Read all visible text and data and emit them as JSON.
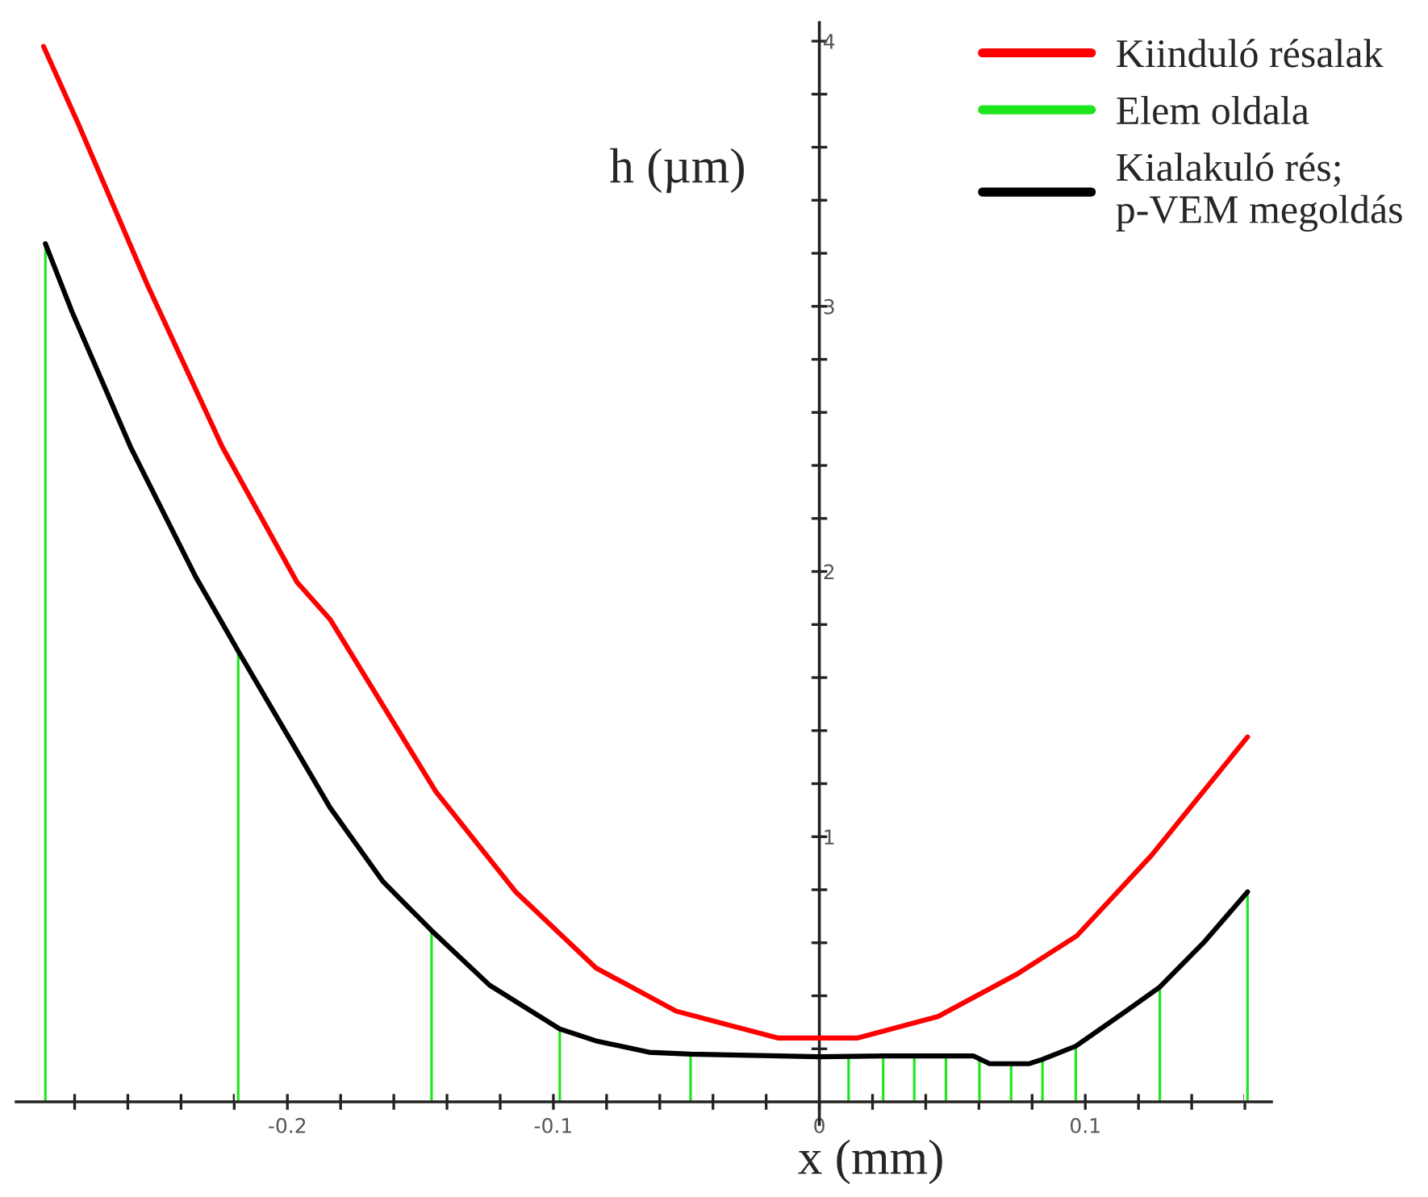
{
  "chart_data": {
    "type": "line",
    "xlabel": "x (mm)",
    "ylabel": "h (µm)",
    "series": [
      {
        "name": "Kiinduló résalak",
        "color": "#ff0000",
        "x": [
          -0.2917,
          -0.2787,
          -0.2526,
          -0.2245,
          -0.1964,
          -0.184,
          -0.1442,
          -0.114,
          -0.084,
          -0.0538,
          -0.0157,
          0.0145,
          0.0446,
          0.0747,
          0.0968,
          0.1249,
          0.161
        ],
        "values": [
          3.98,
          3.69,
          3.08,
          2.47,
          1.96,
          1.82,
          1.17,
          0.79,
          0.505,
          0.342,
          0.241,
          0.241,
          0.322,
          0.484,
          0.626,
          0.93,
          1.376
        ]
      },
      {
        "name": "Elem oldala",
        "color": "#1ee61e",
        "type": "bar",
        "x": [
          -0.291,
          -0.2185,
          -0.1458,
          -0.0976,
          -0.0484,
          0.0,
          0.011,
          0.024,
          0.0357,
          0.0476,
          0.0602,
          0.0721,
          0.0839,
          0.0964,
          0.128,
          0.161
        ],
        "values": [
          3.236,
          1.7,
          0.646,
          0.275,
          0.18,
          0.17,
          0.17,
          0.173,
          0.173,
          0.173,
          0.16,
          0.144,
          0.16,
          0.21,
          0.433,
          0.792
        ]
      },
      {
        "name": "Kialakuló rés;\np-VEM megoldás",
        "color": "#000000",
        "x": [
          -0.291,
          -0.281,
          -0.259,
          -0.2345,
          -0.2185,
          -0.184,
          -0.164,
          -0.1458,
          -0.124,
          -0.0976,
          -0.084,
          -0.064,
          -0.0484,
          0.0,
          0.024,
          0.0476,
          0.058,
          0.064,
          0.0721,
          0.079,
          0.0839,
          0.0964,
          0.115,
          0.128,
          0.145,
          0.161
        ],
        "values": [
          3.236,
          2.98,
          2.47,
          1.98,
          1.7,
          1.11,
          0.83,
          0.646,
          0.44,
          0.275,
          0.23,
          0.187,
          0.18,
          0.17,
          0.173,
          0.173,
          0.173,
          0.144,
          0.144,
          0.144,
          0.16,
          0.21,
          0.34,
          0.433,
          0.606,
          0.792
        ]
      }
    ],
    "xlim": [
      -0.302,
      0.17
    ],
    "ylim": [
      -0.085,
      4.07
    ],
    "xticks": [
      {
        "value": -0.28,
        "label": null
      },
      {
        "value": -0.26,
        "label": null
      },
      {
        "value": -0.24,
        "label": null
      },
      {
        "value": -0.22,
        "label": null
      },
      -0.2,
      {
        "value": -0.18,
        "label": null
      },
      {
        "value": -0.16,
        "label": null
      },
      {
        "value": -0.14,
        "label": null
      },
      {
        "value": -0.12,
        "label": null
      },
      -0.1,
      {
        "value": -0.08,
        "label": null
      },
      {
        "value": -0.06,
        "label": null
      },
      {
        "value": -0.04,
        "label": null
      },
      {
        "value": -0.02,
        "label": null
      },
      0,
      {
        "value": 0.02,
        "label": null
      },
      {
        "value": 0.04,
        "label": null
      },
      {
        "value": 0.06,
        "label": null
      },
      {
        "value": 0.08,
        "label": null
      },
      0.1,
      {
        "value": 0.12,
        "label": null
      },
      {
        "value": 0.14,
        "label": null
      },
      {
        "value": 0.16,
        "label": null
      }
    ],
    "yticks": [
      {
        "value": 0.2,
        "label": null
      },
      {
        "value": 0.4,
        "label": null
      },
      {
        "value": 0.6,
        "label": null
      },
      {
        "value": 0.8,
        "label": null
      },
      1,
      {
        "value": 1.2,
        "label": null
      },
      {
        "value": 1.4,
        "label": null
      },
      {
        "value": 1.6,
        "label": null
      },
      {
        "value": 1.8,
        "label": null
      },
      2,
      {
        "value": 2.2,
        "label": null
      },
      {
        "value": 2.4,
        "label": null
      },
      {
        "value": 2.6,
        "label": null
      },
      {
        "value": 2.8,
        "label": null
      },
      3,
      {
        "value": 3.2,
        "label": null
      },
      {
        "value": 3.4,
        "label": null
      },
      {
        "value": 3.6,
        "label": null
      },
      {
        "value": 3.8,
        "label": null
      },
      4
    ],
    "grid": false,
    "legend": "top right"
  }
}
